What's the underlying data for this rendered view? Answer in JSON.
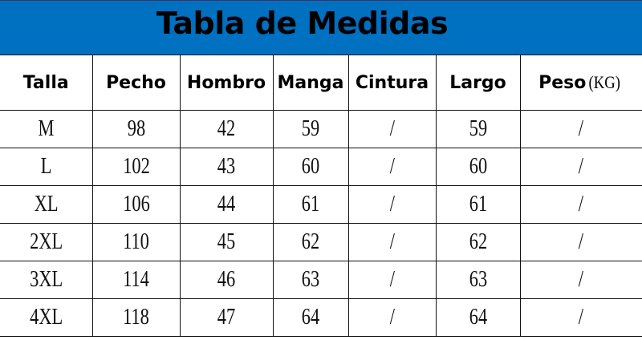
{
  "title": "Tabla de Medidas",
  "colors": {
    "banner": "#0070C0",
    "text": "#000000"
  },
  "headers": [
    "Talla",
    "Pecho",
    "Hombro",
    "Manga",
    "Cintura",
    "Largo",
    "Peso"
  ],
  "peso_unit": "(KG)",
  "rows": [
    [
      "M",
      "98",
      "42",
      "59",
      "/",
      "59",
      "/"
    ],
    [
      "L",
      "102",
      "43",
      "60",
      "/",
      "60",
      "/"
    ],
    [
      "XL",
      "106",
      "44",
      "61",
      "/",
      "61",
      "/"
    ],
    [
      "2XL",
      "110",
      "45",
      "62",
      "/",
      "62",
      "/"
    ],
    [
      "3XL",
      "114",
      "46",
      "63",
      "/",
      "63",
      "/"
    ],
    [
      "4XL",
      "118",
      "47",
      "64",
      "/",
      "64",
      "/"
    ]
  ]
}
